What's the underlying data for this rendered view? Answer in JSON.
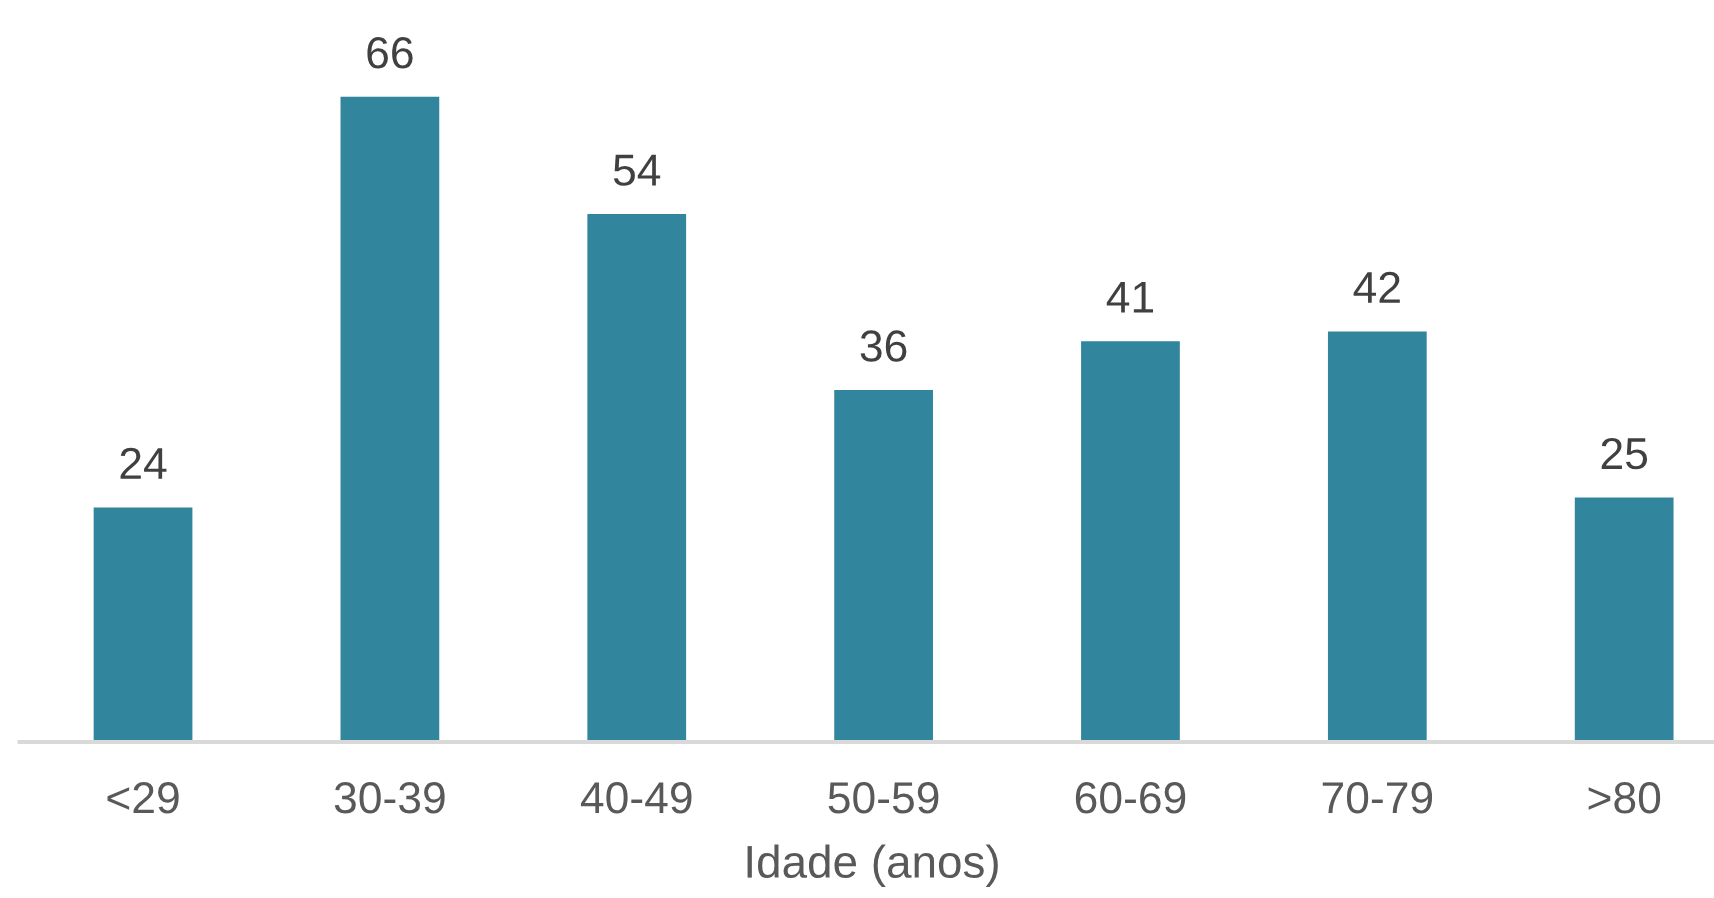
{
  "chart_data": {
    "type": "bar",
    "categories": [
      "<29",
      "30-39",
      "40-49",
      "50-59",
      "60-69",
      "70-79",
      ">80"
    ],
    "values": [
      24,
      66,
      54,
      36,
      41,
      42,
      25
    ],
    "color": "#31859c",
    "xlabel": "Idade (anos)",
    "data_labels": true
  }
}
